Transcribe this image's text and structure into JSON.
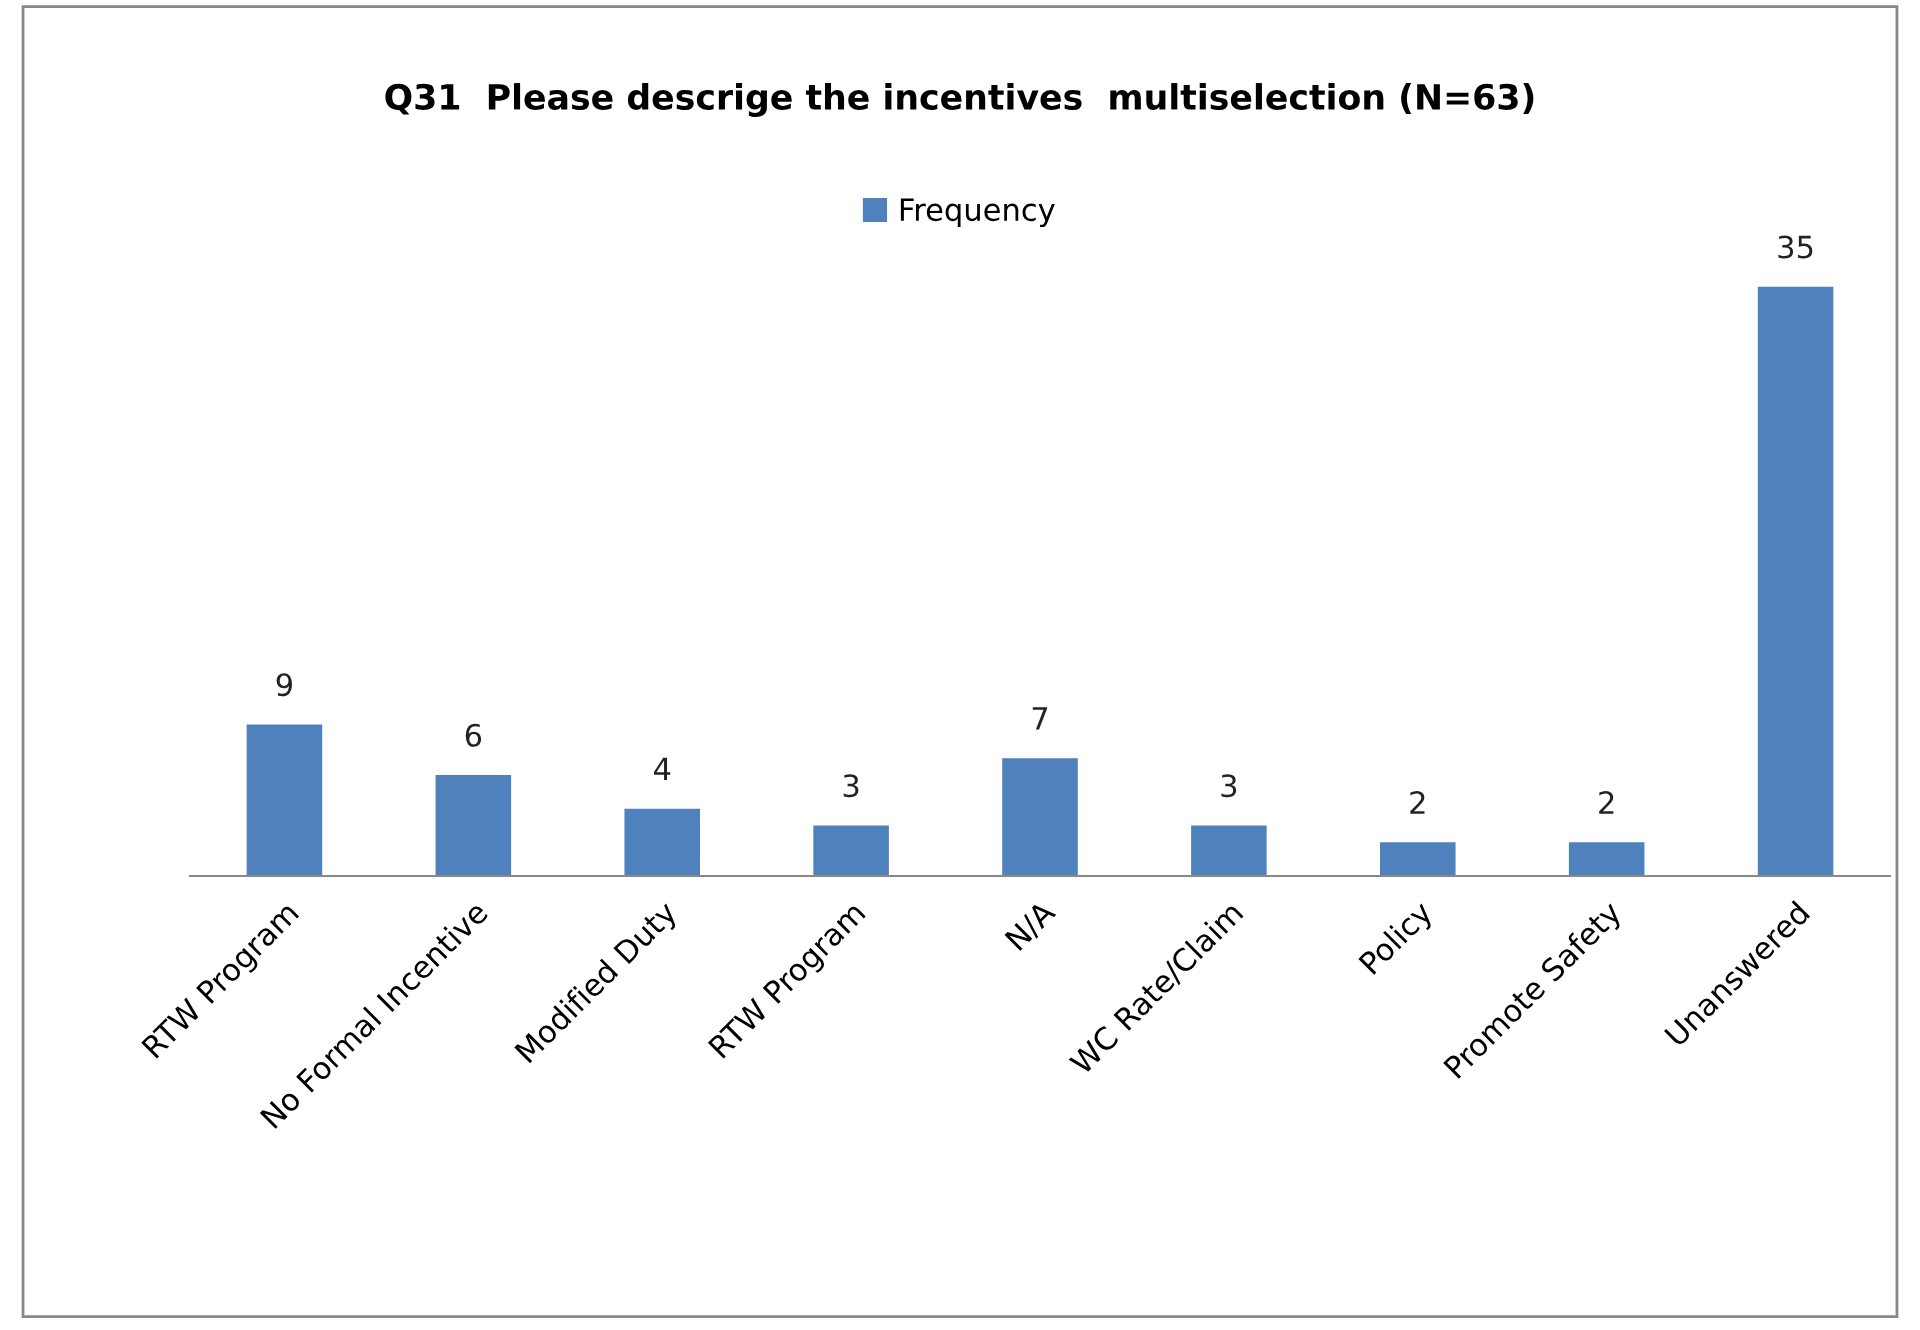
{
  "chart_data": {
    "type": "bar",
    "title": "Q31  Please descrige the incentives  multiselection (N=63)",
    "categories": [
      "RTW Program",
      "No Formal Incentive",
      "Modified Duty",
      "RTW Program",
      "N/A",
      "WC Rate/Claim",
      "Policy",
      "Promote Safety",
      "Unanswered"
    ],
    "series": [
      {
        "name": "Frequency",
        "color": "#4f81bd",
        "values": [
          9,
          6,
          4,
          3,
          7,
          3,
          2,
          2,
          35
        ]
      }
    ],
    "data_labels": true,
    "legend": "top",
    "grid": false
  }
}
